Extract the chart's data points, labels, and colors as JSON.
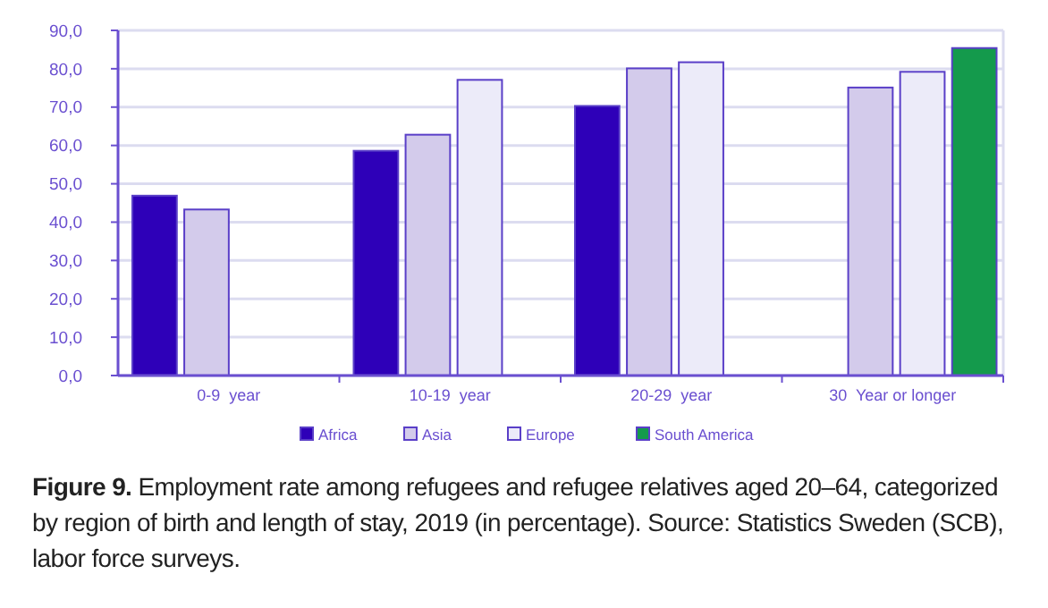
{
  "chart_data": {
    "type": "bar",
    "categories": [
      "0-9  year",
      "10-19  year",
      "20-29  year",
      "30  Year or longer"
    ],
    "series": [
      {
        "name": "Africa",
        "color": "#2e00b8",
        "values": [
          46.9,
          58.6,
          70.3,
          null
        ]
      },
      {
        "name": "Asia",
        "color": "#d3cbeb",
        "values": [
          43.3,
          62.8,
          80.1,
          75.1
        ]
      },
      {
        "name": "Europe",
        "color": "#ecebf9",
        "values": [
          null,
          77.1,
          81.7,
          79.2
        ]
      },
      {
        "name": "South America",
        "color": "#149a4c",
        "values": [
          null,
          null,
          null,
          85.4
        ]
      }
    ],
    "ylim": [
      0,
      90
    ],
    "yticks": [
      {
        "value": 0,
        "label": "0,0"
      },
      {
        "value": 10,
        "label": "10,0"
      },
      {
        "value": 20,
        "label": "20,0"
      },
      {
        "value": 30,
        "label": "30,0"
      },
      {
        "value": 40,
        "label": "40,0"
      },
      {
        "value": 50,
        "label": "50,0"
      },
      {
        "value": 60,
        "label": "60,0"
      },
      {
        "value": 70,
        "label": "70,0"
      },
      {
        "value": 80,
        "label": "80,0"
      },
      {
        "value": 90,
        "label": "90,0"
      }
    ],
    "grid": "y",
    "legend": "bottom",
    "annotations": [
      "Figure 9. Employment rate among refugees and refugee relatives aged 20–64, categorized by region of birth and length of stay, 2019 (in percentage). Source: Statistics Sweden (SCB), labor force surveys."
    ]
  }
}
